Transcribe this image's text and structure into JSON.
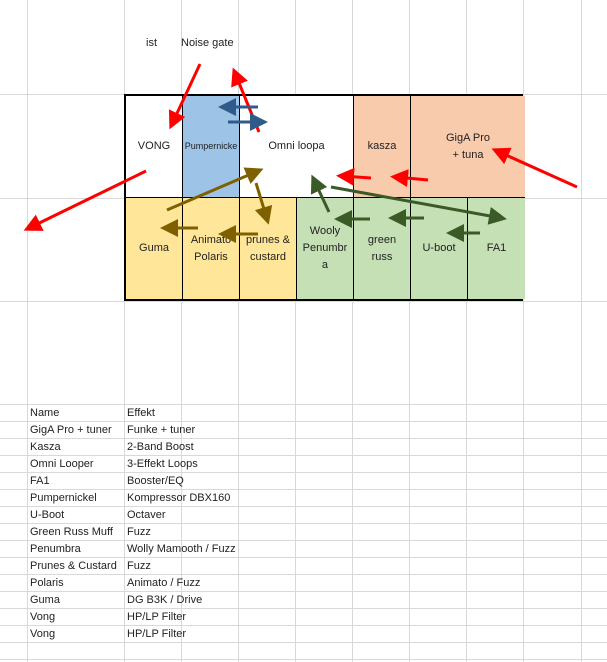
{
  "labels": {
    "ist": "ist",
    "noise_gate": "Noise gate"
  },
  "board": {
    "top": [
      {
        "label": "VONG",
        "color": "#ffffff"
      },
      {
        "label": "Pumpernicke",
        "color": "#9dc3e6"
      },
      {
        "label": "Omni loopa",
        "color": "#ffffff"
      },
      {
        "label": "kasza",
        "color": "#f8cbad"
      },
      {
        "label": "GigA Pro\n+ tuna",
        "color": "#f8cbad"
      }
    ],
    "bottom": [
      {
        "label": "Guma",
        "color": "#ffe699"
      },
      {
        "label": "Animato\nPolaris",
        "color": "#ffe699"
      },
      {
        "label": "prunes &\ncustard",
        "color": "#ffe699"
      },
      {
        "label": "Wooly\nPenumbr\na",
        "color": "#c5e0b4"
      },
      {
        "label": "green\nruss",
        "color": "#c5e0b4"
      },
      {
        "label": "U-boot",
        "color": "#c5e0b4"
      },
      {
        "label": "FA1",
        "color": "#c5e0b4"
      }
    ]
  },
  "arrow_colors": {
    "red": "#ff0000",
    "blue": "#2e5b8a",
    "olive": "#7f6000",
    "green": "#3a5a28"
  },
  "table": {
    "headers": [
      "Name",
      "Effekt"
    ],
    "rows": [
      [
        "GigA Pro + tuner",
        "Funke + tuner"
      ],
      [
        "Kasza",
        "2-Band Boost"
      ],
      [
        "Omni Looper",
        "3-Effekt Loops"
      ],
      [
        "FA1",
        "Booster/EQ"
      ],
      [
        "Pumpernickel",
        "Kompressor DBX160"
      ],
      [
        "U-Boot",
        "Octaver"
      ],
      [
        "Green Russ Muff",
        "Fuzz"
      ],
      [
        "Penumbra",
        "Wolly Mamooth / Fuzz"
      ],
      [
        "Prunes & Custard",
        "Fuzz"
      ],
      [
        "Polaris",
        "Animato / Fuzz"
      ],
      [
        "Guma",
        "DG B3K / Drive"
      ],
      [
        "Vong",
        "HP/LP Filter"
      ],
      [
        "Vong",
        "HP/LP Filter"
      ]
    ]
  }
}
